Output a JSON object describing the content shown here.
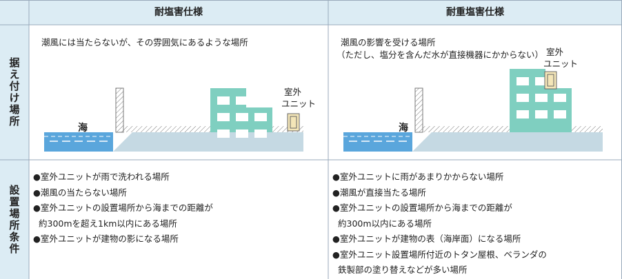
{
  "header": {
    "columns": [
      "耐塩害仕様",
      "耐重塩害仕様"
    ]
  },
  "rows": [
    {
      "label": "据え付け場所",
      "cells": [
        {
          "lines": [
            "潮風には当たらないが、その雰囲気にあるような場所"
          ],
          "sea": "海",
          "unit": [
            "室外",
            "ユニット"
          ]
        },
        {
          "lines": [
            "潮風の影響を受ける場所",
            "（ただし、塩分を含んだ水が直接機器にかからない）"
          ],
          "sea": "海",
          "unit": [
            "室外",
            "ユニット"
          ]
        }
      ]
    },
    {
      "label": "設置場所条件",
      "cells": [
        {
          "items": [
            [
              "●室外ユニットが雨で洗われる場所"
            ],
            [
              "●潮風の当たらない場所"
            ],
            [
              "●室外ユニットの設置場所から海までの距離が",
              "約300mを超え1km以内にある場所"
            ],
            [
              "●室外ユニットが建物の影になる場所"
            ]
          ]
        },
        {
          "items": [
            [
              "●室外ユニットに雨があまりかからない場所"
            ],
            [
              "●潮風が直接当たる場所"
            ],
            [
              "●室外ユニットの設置場所から海までの距離が",
              "約300m以内にある場所"
            ],
            [
              "●室外ユニットが建物の表（海岸面）になる場所"
            ],
            [
              "●室外ユニット設置場所付近のトタン屋根、ベランダの",
              "鉄製部の塗り替えなどが多い場所"
            ]
          ]
        }
      ]
    }
  ]
}
